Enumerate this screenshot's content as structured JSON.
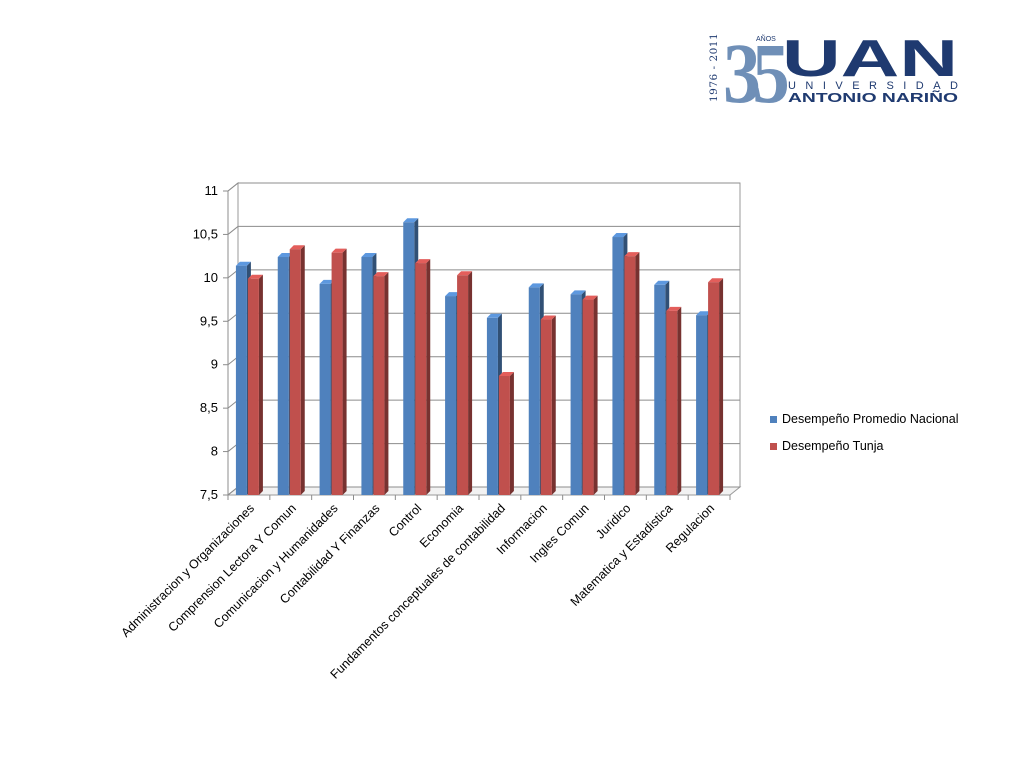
{
  "logo": {
    "years": "1976 - 2011",
    "anniversary": "35",
    "anos": "AÑOS",
    "brand": "UAN",
    "line1": "UNIVERSIDAD",
    "line2": "ANTONIO NARIÑO",
    "colors": {
      "navy": "#1f3a70",
      "blue": "#2f6db4",
      "steel": "#6f8fb7"
    }
  },
  "chart_data": {
    "type": "bar",
    "style": "3d-clustered",
    "categories": [
      "Administracion y Organizaciones",
      "Comprension Lectora Y Comun",
      "Comunicacion y Humanidades",
      "Contabilidad Y Finanzas",
      "Control",
      "Economia",
      "Fundamentos conceptuales de contabilidad",
      "Informacion",
      "Ingles Comun",
      "Juridico",
      "Matematica y Estadistica",
      "Regulacion"
    ],
    "series": [
      {
        "name": "Desempeño Promedio Nacional",
        "color": "#4f81bd",
        "values": [
          10.14,
          10.24,
          9.93,
          10.24,
          10.64,
          9.79,
          9.54,
          9.89,
          9.81,
          10.47,
          9.92,
          9.57
        ]
      },
      {
        "name": "Desempeño Tunja",
        "color": "#c0504d",
        "values": [
          9.99,
          10.33,
          10.29,
          10.02,
          10.17,
          10.03,
          8.87,
          9.52,
          9.75,
          10.25,
          9.62,
          9.95
        ]
      }
    ],
    "ylim": [
      7.5,
      11
    ],
    "yticks": [
      "7,5",
      "8",
      "8,5",
      "9",
      "9,5",
      "10",
      "10,5",
      "11"
    ],
    "grid": true,
    "legend_position": "right"
  }
}
